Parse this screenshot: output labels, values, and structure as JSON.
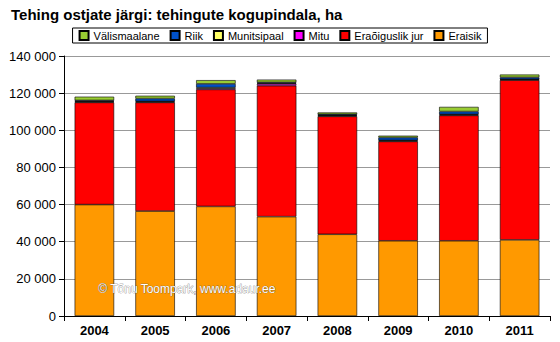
{
  "chart_data": {
    "type": "bar",
    "title": "Tehing ostjate järgi: tehingute kogupindala, ha",
    "annotation": "© Tõnu Toompark, www.adaur.ee",
    "stacked": true,
    "grid": true,
    "legend": "top",
    "categories": [
      "2004",
      "2005",
      "2006",
      "2007",
      "2008",
      "2009",
      "2010",
      "2011"
    ],
    "series": [
      {
        "name": "Eraisik",
        "color": "#ff9900",
        "values": [
          60000,
          56500,
          59000,
          53500,
          44000,
          40500,
          40500,
          41000
        ]
      },
      {
        "name": "Eraõiguslik jur",
        "color": "#ff0000",
        "values": [
          55000,
          58500,
          63000,
          70500,
          63500,
          53500,
          67500,
          86000
        ]
      },
      {
        "name": "Mitu",
        "color": "#ff00ff",
        "values": [
          300,
          300,
          500,
          1000,
          300,
          300,
          300,
          300
        ]
      },
      {
        "name": "Munitsipaal",
        "color": "#ffff66",
        "values": [
          300,
          300,
          500,
          300,
          300,
          300,
          300,
          200
        ]
      },
      {
        "name": "Riik",
        "color": "#0050c8",
        "values": [
          500,
          1500,
          2000,
          500,
          500,
          1500,
          1500,
          1000
        ]
      },
      {
        "name": "Välismaalane",
        "color": "#99cc33",
        "values": [
          2000,
          1500,
          2000,
          1500,
          1000,
          1000,
          2500,
          1500
        ]
      }
    ],
    "ylim": [
      0,
      140000
    ],
    "yticks": [
      0,
      {
        "value": 20000,
        "label": "20 000"
      },
      {
        "value": 40000,
        "label": "40 000"
      },
      {
        "value": 60000,
        "label": "60 000"
      },
      {
        "value": 80000,
        "label": "80 000"
      },
      {
        "value": 100000,
        "label": "100 000"
      },
      {
        "value": 120000,
        "label": "120 000"
      },
      {
        "value": 140000,
        "label": "140 000"
      }
    ]
  }
}
